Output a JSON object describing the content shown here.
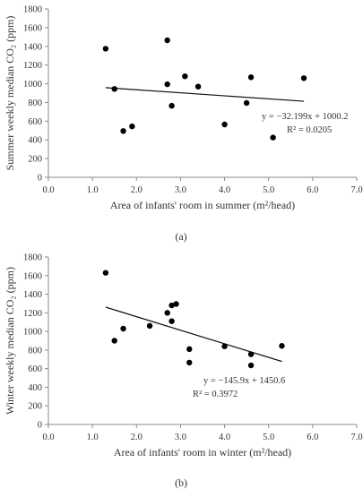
{
  "chart_data": [
    {
      "id": "a",
      "type": "scatter",
      "panel_label": "(a)",
      "xlabel": "Area of infants' room in summer (m²/head)",
      "ylabel": "Summer weekly median CO₂ (ppm)",
      "xlim": [
        0,
        7
      ],
      "ylim": [
        0,
        1800
      ],
      "xticks": [
        "0.0",
        "1.0",
        "2.0",
        "3.0",
        "4.0",
        "5.0",
        "6.0",
        "7.0"
      ],
      "yticks": [
        "0",
        "200",
        "400",
        "600",
        "800",
        "1000",
        "1200",
        "1400",
        "1600",
        "1800"
      ],
      "points": [
        {
          "x": 1.3,
          "y": 1375
        },
        {
          "x": 1.5,
          "y": 945
        },
        {
          "x": 1.7,
          "y": 495
        },
        {
          "x": 1.9,
          "y": 545
        },
        {
          "x": 2.7,
          "y": 1465
        },
        {
          "x": 2.7,
          "y": 995
        },
        {
          "x": 2.8,
          "y": 765
        },
        {
          "x": 3.1,
          "y": 1080
        },
        {
          "x": 3.4,
          "y": 970
        },
        {
          "x": 4.0,
          "y": 565
        },
        {
          "x": 4.5,
          "y": 795
        },
        {
          "x": 4.6,
          "y": 1070
        },
        {
          "x": 5.1,
          "y": 425
        },
        {
          "x": 5.8,
          "y": 1060
        }
      ],
      "trendline": {
        "slope": -32.199,
        "intercept": 1000.2,
        "x_range": [
          1.3,
          5.8
        ]
      },
      "equation": "y = −32.199x + 1000.2",
      "r2": "R² = 0.0205",
      "grid": false,
      "legend": "none"
    },
    {
      "id": "b",
      "type": "scatter",
      "panel_label": "(b)",
      "xlabel": "Area of infants' room in winter (m²/head)",
      "ylabel": "Winter weekly median CO₂ (ppm)",
      "xlim": [
        0,
        7
      ],
      "ylim": [
        0,
        1800
      ],
      "xticks": [
        "0.0",
        "1.0",
        "2.0",
        "3.0",
        "4.0",
        "5.0",
        "6.0",
        "7.0"
      ],
      "yticks": [
        "0",
        "200",
        "400",
        "600",
        "800",
        "1000",
        "1200",
        "1400",
        "1600",
        "1800"
      ],
      "points": [
        {
          "x": 1.3,
          "y": 1630
        },
        {
          "x": 1.5,
          "y": 900
        },
        {
          "x": 1.7,
          "y": 1030
        },
        {
          "x": 2.3,
          "y": 1060
        },
        {
          "x": 2.7,
          "y": 1200
        },
        {
          "x": 2.8,
          "y": 1280
        },
        {
          "x": 2.8,
          "y": 1110
        },
        {
          "x": 2.9,
          "y": 1295
        },
        {
          "x": 3.2,
          "y": 810
        },
        {
          "x": 3.2,
          "y": 665
        },
        {
          "x": 4.0,
          "y": 840
        },
        {
          "x": 4.6,
          "y": 755
        },
        {
          "x": 4.6,
          "y": 635
        },
        {
          "x": 5.3,
          "y": 845
        }
      ],
      "trendline": {
        "slope": -145.9,
        "intercept": 1450.6,
        "x_range": [
          1.3,
          5.3
        ]
      },
      "equation": "y = −145.9x + 1450.6",
      "r2": "R² = 0.3972",
      "grid": false,
      "legend": "none"
    }
  ]
}
